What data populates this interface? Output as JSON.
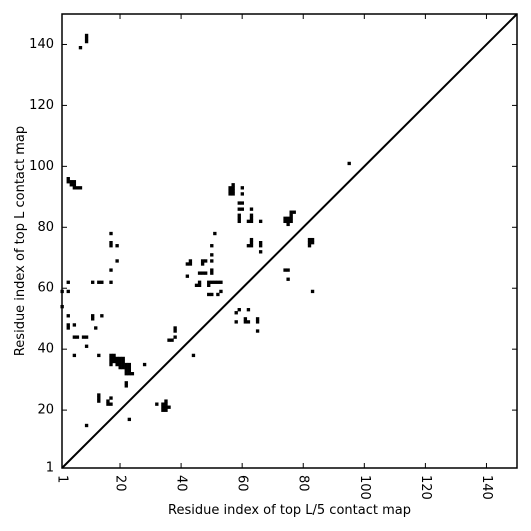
{
  "chart_data": {
    "type": "scatter",
    "xlabel": "Residue index of top L/5 contact map",
    "ylabel": "Residue index of top L contact map",
    "xlim": [
      1,
      150
    ],
    "ylim": [
      1,
      150
    ],
    "x_ticks": [
      1,
      20,
      40,
      60,
      80,
      100,
      120,
      140
    ],
    "y_ticks": [
      1,
      20,
      40,
      60,
      80,
      100,
      120,
      140
    ],
    "diagonal": true,
    "grid": false,
    "marker": "square",
    "color": "#000000",
    "points": [
      [
        1,
        54
      ],
      [
        1,
        59
      ],
      [
        3,
        62
      ],
      [
        3,
        59
      ],
      [
        3,
        51
      ],
      [
        3,
        48
      ],
      [
        3,
        47
      ],
      [
        3,
        96
      ],
      [
        3,
        95
      ],
      [
        4,
        94
      ],
      [
        4,
        95
      ],
      [
        5,
        93
      ],
      [
        5,
        94
      ],
      [
        5,
        95
      ],
      [
        5,
        48
      ],
      [
        5,
        44
      ],
      [
        5,
        38
      ],
      [
        6,
        93
      ],
      [
        6,
        44
      ],
      [
        7,
        93
      ],
      [
        7,
        139
      ],
      [
        8,
        44
      ],
      [
        9,
        142
      ],
      [
        9,
        143
      ],
      [
        9,
        141
      ],
      [
        9,
        44
      ],
      [
        9,
        41
      ],
      [
        9,
        15
      ],
      [
        11,
        62
      ],
      [
        11,
        51
      ],
      [
        11,
        50
      ],
      [
        12,
        47
      ],
      [
        13,
        38
      ],
      [
        13,
        62
      ],
      [
        13,
        25
      ],
      [
        13,
        24
      ],
      [
        13,
        23
      ],
      [
        14,
        51
      ],
      [
        14,
        62
      ],
      [
        16,
        22
      ],
      [
        16,
        23
      ],
      [
        17,
        22
      ],
      [
        17,
        24
      ],
      [
        17,
        78
      ],
      [
        17,
        75
      ],
      [
        17,
        74
      ],
      [
        17,
        66
      ],
      [
        17,
        62
      ],
      [
        17,
        38
      ],
      [
        17,
        37
      ],
      [
        17,
        36
      ],
      [
        17,
        35
      ],
      [
        18,
        38
      ],
      [
        18,
        37
      ],
      [
        18,
        36
      ],
      [
        19,
        74
      ],
      [
        19,
        69
      ],
      [
        19,
        37
      ],
      [
        19,
        36
      ],
      [
        19,
        35
      ],
      [
        20,
        37
      ],
      [
        20,
        36
      ],
      [
        20,
        35
      ],
      [
        20,
        34
      ],
      [
        21,
        37
      ],
      [
        21,
        36
      ],
      [
        21,
        35
      ],
      [
        21,
        34
      ],
      [
        22,
        35
      ],
      [
        22,
        34
      ],
      [
        22,
        33
      ],
      [
        22,
        32
      ],
      [
        22,
        29
      ],
      [
        22,
        28
      ],
      [
        23,
        35
      ],
      [
        23,
        34
      ],
      [
        23,
        33
      ],
      [
        23,
        32
      ],
      [
        23,
        17
      ],
      [
        24,
        32
      ],
      [
        28,
        35
      ],
      [
        32,
        22
      ],
      [
        34,
        22
      ],
      [
        34,
        21
      ],
      [
        34,
        20
      ],
      [
        35,
        23
      ],
      [
        35,
        22
      ],
      [
        35,
        21
      ],
      [
        35,
        20
      ],
      [
        36,
        21
      ],
      [
        36,
        43
      ],
      [
        37,
        43
      ],
      [
        38,
        47
      ],
      [
        38,
        46
      ],
      [
        38,
        44
      ],
      [
        42,
        68
      ],
      [
        42,
        64
      ],
      [
        43,
        69
      ],
      [
        43,
        68
      ],
      [
        44,
        38
      ],
      [
        45,
        61
      ],
      [
        46,
        62
      ],
      [
        46,
        61
      ],
      [
        46,
        65
      ],
      [
        47,
        65
      ],
      [
        47,
        68
      ],
      [
        47,
        69
      ],
      [
        48,
        69
      ],
      [
        48,
        65
      ],
      [
        49,
        62
      ],
      [
        49,
        61
      ],
      [
        49,
        58
      ],
      [
        50,
        65
      ],
      [
        50,
        66
      ],
      [
        50,
        62
      ],
      [
        50,
        69
      ],
      [
        50,
        71
      ],
      [
        50,
        74
      ],
      [
        50,
        58
      ],
      [
        51,
        78
      ],
      [
        51,
        62
      ],
      [
        52,
        62
      ],
      [
        52,
        58
      ],
      [
        53,
        62
      ],
      [
        53,
        59
      ],
      [
        56,
        91
      ],
      [
        56,
        92
      ],
      [
        56,
        93
      ],
      [
        57,
        91
      ],
      [
        57,
        92
      ],
      [
        57,
        93
      ],
      [
        57,
        94
      ],
      [
        58,
        52
      ],
      [
        58,
        49
      ],
      [
        59,
        84
      ],
      [
        59,
        83
      ],
      [
        59,
        82
      ],
      [
        59,
        86
      ],
      [
        59,
        88
      ],
      [
        59,
        53
      ],
      [
        60,
        93
      ],
      [
        60,
        91
      ],
      [
        60,
        88
      ],
      [
        60,
        86
      ],
      [
        61,
        50
      ],
      [
        61,
        49
      ],
      [
        62,
        53
      ],
      [
        62,
        49
      ],
      [
        62,
        82
      ],
      [
        62,
        74
      ],
      [
        63,
        86
      ],
      [
        63,
        84
      ],
      [
        63,
        83
      ],
      [
        63,
        82
      ],
      [
        63,
        76
      ],
      [
        63,
        75
      ],
      [
        63,
        74
      ],
      [
        65,
        50
      ],
      [
        65,
        49
      ],
      [
        65,
        46
      ],
      [
        66,
        82
      ],
      [
        66,
        75
      ],
      [
        66,
        74
      ],
      [
        66,
        72
      ],
      [
        74,
        66
      ],
      [
        74,
        83
      ],
      [
        74,
        82
      ],
      [
        75,
        83
      ],
      [
        75,
        82
      ],
      [
        75,
        81
      ],
      [
        75,
        66
      ],
      [
        75,
        63
      ],
      [
        76,
        85
      ],
      [
        76,
        84
      ],
      [
        76,
        83
      ],
      [
        76,
        82
      ],
      [
        77,
        85
      ],
      [
        82,
        76
      ],
      [
        82,
        75
      ],
      [
        82,
        74
      ],
      [
        83,
        76
      ],
      [
        83,
        75
      ],
      [
        83,
        59
      ],
      [
        95,
        101
      ]
    ]
  }
}
